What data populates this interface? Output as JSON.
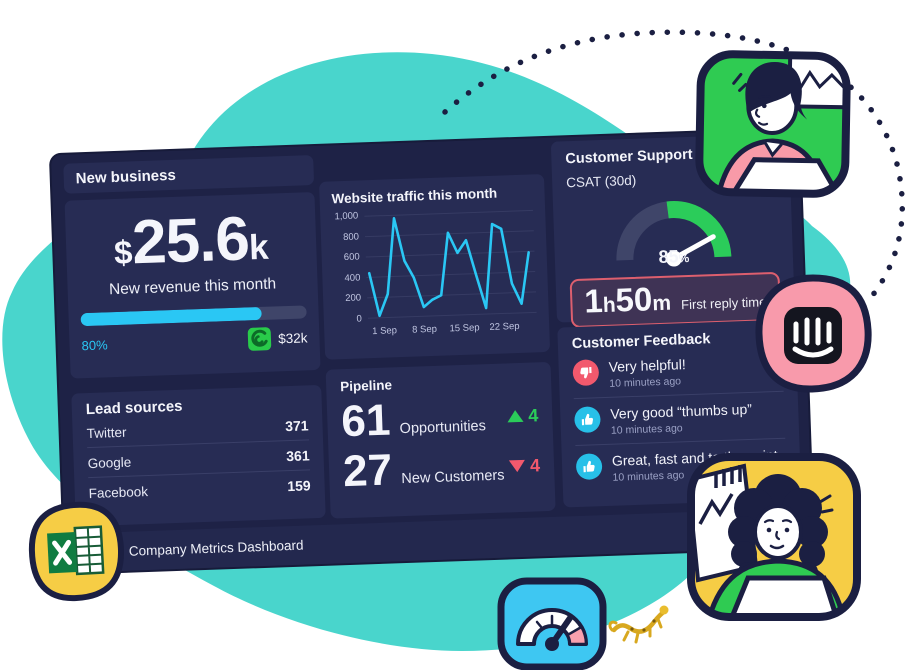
{
  "colors": {
    "outline_navy": "#1b1f42",
    "dashboard_bg": "#1e2246",
    "panel_bg": "#272c54",
    "teal_blob": "#49d5cc",
    "cyan": "#2ac7f4",
    "green": "#2bcc5a",
    "red": "#f2596d",
    "yellow": "#f6cd45",
    "pink": "#f89aab",
    "blue_icon": "#3ec7f2",
    "gauge_track": "#3f4569",
    "reply_box_border": "#dd5f6e",
    "muted_text": "#9aa0c4"
  },
  "dashboard": {
    "footer_title": "Company Metrics Dashboard",
    "new_business": {
      "header": "New business",
      "currency": "$",
      "value": "25.6",
      "unit": "k",
      "label": "New revenue this month",
      "progress_value": 80,
      "progress_pct_label": "80%",
      "target_label": "$32k"
    },
    "lead_sources": {
      "title": "Lead sources",
      "rows": [
        {
          "label": "Twitter",
          "value": "371"
        },
        {
          "label": "Google",
          "value": "361"
        },
        {
          "label": "Facebook",
          "value": "159"
        }
      ]
    },
    "pipeline": {
      "title": "Pipeline",
      "items": [
        {
          "value": "61",
          "label": "Opportunities",
          "delta": "4",
          "direction": "up"
        },
        {
          "value": "27",
          "label": "New Customers",
          "delta": "4",
          "direction": "down"
        }
      ]
    },
    "customer_support": {
      "title": "Customer Support",
      "csat_label": "CSAT (30d)",
      "csat_value": "85",
      "csat_unit": "%",
      "reply_parts": [
        {
          "text": "1",
          "style": "num"
        },
        {
          "text": "h",
          "style": "unit"
        },
        {
          "text": "50",
          "style": "num"
        },
        {
          "text": "m",
          "style": "unit"
        }
      ],
      "reply_label": "First reply time"
    },
    "customer_feedback": {
      "title": "Customer Feedback",
      "items": [
        {
          "text": "Very helpful!",
          "time": "10 minutes ago",
          "sentiment": "negative"
        },
        {
          "text": "Very good “thumbs up”",
          "time": "10 minutes ago",
          "sentiment": "positive"
        },
        {
          "text": "Great, fast and to the point",
          "time": "10 minutes ago",
          "sentiment": "positive"
        }
      ]
    }
  },
  "chart_data": [
    {
      "type": "line",
      "title": "Website traffic this month",
      "values": [
        440,
        20,
        230,
        970,
        550,
        380,
        90,
        160,
        200,
        810,
        610,
        730,
        390,
        60,
        880,
        830,
        290,
        90,
        590
      ],
      "x_tick_labels": [
        {
          "i": 1.5,
          "label": "1 Sep"
        },
        {
          "i": 6,
          "label": "8 Sep"
        },
        {
          "i": 10.5,
          "label": "15 Sep"
        },
        {
          "i": 15,
          "label": "22 Sep"
        }
      ],
      "yticks": [
        0,
        200,
        400,
        600,
        800,
        1000
      ],
      "ytick_labels": [
        "0",
        "200",
        "400",
        "600",
        "800",
        "1,000"
      ],
      "ylim": [
        0,
        1000
      ],
      "grid": true,
      "legend": "none",
      "line_color": "#2ac7f4"
    },
    {
      "type": "gauge",
      "title": "CSAT (30d)",
      "value": 85,
      "min": 0,
      "max": 100,
      "unit": "%",
      "green_zone_start_pct": 47,
      "track_color": "#3f4569",
      "zone_color": "#2bcc5a"
    }
  ],
  "icons": {
    "gecko_logo": "geckoboard-spiral",
    "excel": "microsoft-excel",
    "intercom": "intercom-messenger",
    "speedometer": "speedometer-gauge",
    "gecko": "gecko-lizard-doodle"
  }
}
